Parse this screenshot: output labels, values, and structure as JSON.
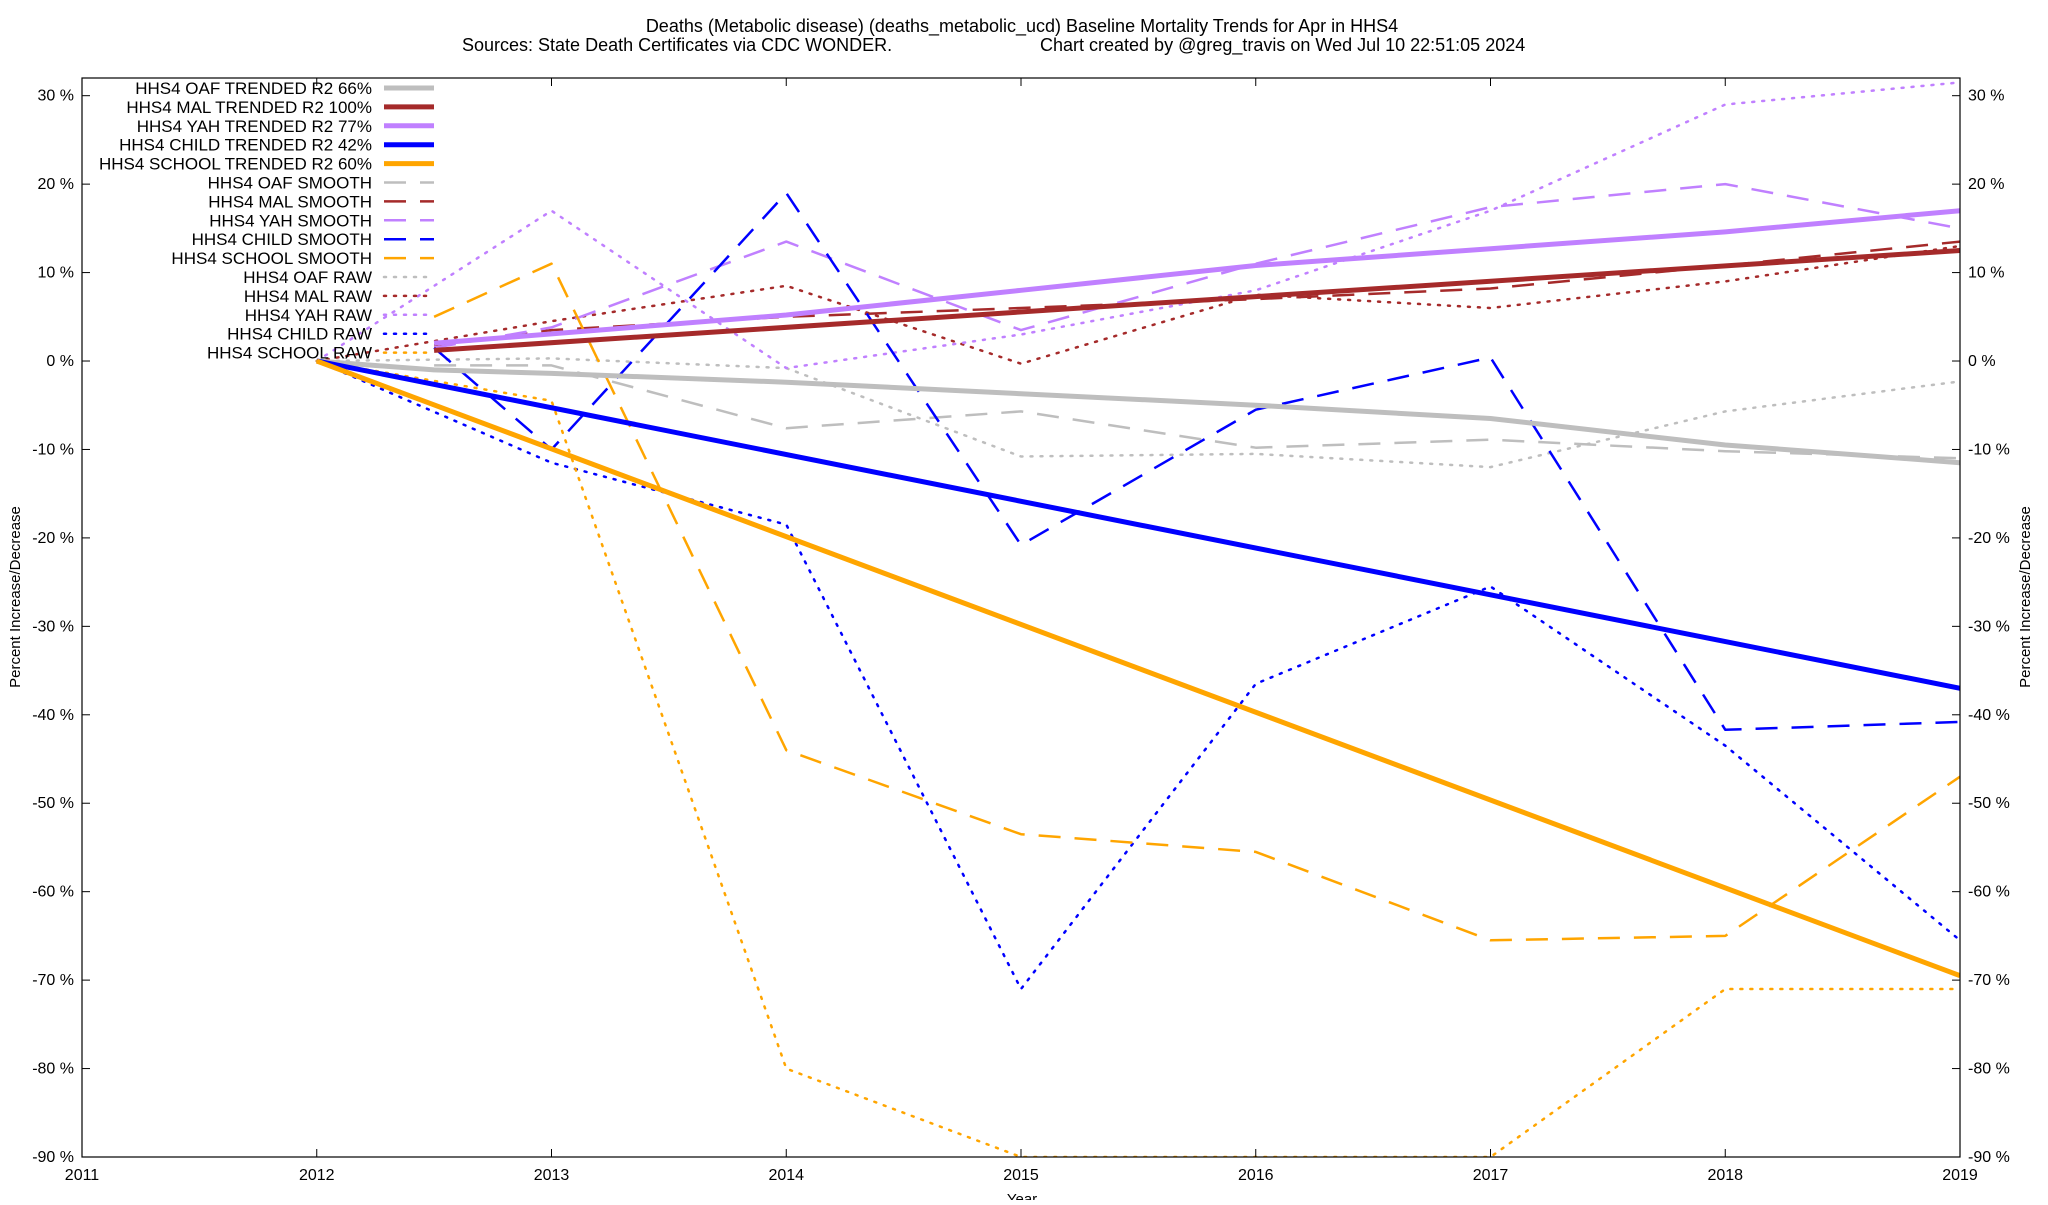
{
  "chart_data": {
    "type": "line",
    "title_line1": "Deaths (Metabolic disease) (deaths_metabolic_ucd)  Baseline Mortality Trends for Apr in HHS4",
    "title_line2_left": "Sources: State Death Certificates via CDC WONDER.",
    "title_line2_right": "Chart created by @greg_travis on Wed Jul 10 22:51:05 2024",
    "xlabel": "Year",
    "ylabel": "Percent Increase/Decrease",
    "ylabel_right": "Percent Increase/Decrease",
    "xlim": [
      2011,
      2019
    ],
    "ylim": [
      -90,
      32
    ],
    "x_ticks": [
      2011,
      2012,
      2013,
      2014,
      2015,
      2016,
      2017,
      2018,
      2019
    ],
    "x_tick_labels": [
      "2011",
      "2012",
      "2013",
      "2014",
      "2015",
      "2016",
      "2017",
      "2018",
      "2019"
    ],
    "y_ticks": [
      30,
      20,
      10,
      0,
      -10,
      -20,
      -30,
      -40,
      -50,
      -60,
      -70,
      -80,
      -90
    ],
    "y_tick_labels": [
      "30 %",
      "20 %",
      "10 %",
      "0 %",
      "-10 %",
      "-20 %",
      "-30 %",
      "-40 %",
      "-50 %",
      "-60 %",
      "-70 %",
      "-80 %",
      "-90 %"
    ],
    "grid": false,
    "legend_position": "top-left",
    "series": [
      {
        "name": "HHS4 OAF TRENDED R2  66%",
        "style": "solid",
        "color": "#bebebe",
        "x": [
          2012,
          2012.5,
          2013,
          2014,
          2015,
          2016,
          2017,
          2018,
          2019
        ],
        "y": [
          0,
          -1,
          -1.4,
          -2.4,
          -3.7,
          -5.0,
          -6.5,
          -9.5,
          -11.5
        ]
      },
      {
        "name": "HHS4 MAL TRENDED R2 100%",
        "style": "solid",
        "color": "#a52a2a",
        "x": [
          2012.5,
          2019
        ],
        "y": [
          1.2,
          12.5
        ]
      },
      {
        "name": "HHS4 YAH TRENDED R2  77%",
        "style": "solid",
        "color": "#c080ff",
        "x": [
          2012.5,
          2014,
          2015,
          2016,
          2017,
          2018,
          2019
        ],
        "y": [
          2.0,
          5.2,
          8.0,
          10.8,
          12.7,
          14.6,
          17.0
        ]
      },
      {
        "name": "HHS4 CHILD TRENDED R2  42%",
        "style": "solid",
        "color": "#0000ff",
        "x": [
          2012,
          2019
        ],
        "y": [
          0,
          -37.0
        ]
      },
      {
        "name": "HHS4 SCHOOL TRENDED R2  60%",
        "style": "solid",
        "color": "#ffa500",
        "x": [
          2012,
          2019
        ],
        "y": [
          0,
          -69.5
        ]
      },
      {
        "name": "HHS4 OAF SMOOTH",
        "style": "dashed",
        "color": "#bebebe",
        "x": [
          2012.5,
          2013,
          2014,
          2015,
          2016,
          2017,
          2018,
          2019
        ],
        "y": [
          -0.5,
          -0.5,
          -7.6,
          -5.7,
          -9.8,
          -8.9,
          -10.2,
          -11.0
        ]
      },
      {
        "name": "HHS4 MAL SMOOTH",
        "style": "dashed",
        "color": "#a52a2a",
        "x": [
          2012.5,
          2013,
          2014,
          2015,
          2016,
          2017,
          2018,
          2019
        ],
        "y": [
          1.8,
          3.5,
          5.0,
          6.0,
          7.0,
          8.2,
          10.8,
          13.5
        ]
      },
      {
        "name": "HHS4 YAH SMOOTH",
        "style": "dashed",
        "color": "#c080ff",
        "x": [
          2012.5,
          2013,
          2014,
          2015,
          2016,
          2017,
          2018,
          2019
        ],
        "y": [
          1.5,
          3.8,
          13.5,
          3.5,
          11.0,
          17.4,
          20.0,
          15.0
        ]
      },
      {
        "name": "HHS4 CHILD SMOOTH",
        "style": "dashed",
        "color": "#0000ff",
        "x": [
          2012.5,
          2013,
          2014,
          2015,
          2016,
          2017,
          2018,
          2019
        ],
        "y": [
          1.5,
          -10.0,
          19.0,
          -20.8,
          -5.5,
          0.4,
          -41.7,
          -40.8
        ]
      },
      {
        "name": "HHS4 SCHOOL SMOOTH",
        "style": "dashed",
        "color": "#ffa500",
        "x": [
          2012.5,
          2013,
          2014,
          2015,
          2016,
          2017,
          2018,
          2019
        ],
        "y": [
          5.0,
          11.0,
          -44.0,
          -53.5,
          -55.5,
          -65.5,
          -65.0,
          -47.0
        ]
      },
      {
        "name": "HHS4 OAF RAW",
        "style": "dotted",
        "color": "#bebebe",
        "x": [
          2012,
          2013,
          2014,
          2015,
          2016,
          2017,
          2018,
          2019
        ],
        "y": [
          0,
          0.3,
          -0.8,
          -10.8,
          -10.5,
          -12.0,
          -5.7,
          -2.3
        ]
      },
      {
        "name": "HHS4 MAL RAW",
        "style": "dotted",
        "color": "#a52a2a",
        "x": [
          2012,
          2013,
          2014,
          2015,
          2016,
          2017,
          2018,
          2019
        ],
        "y": [
          0,
          4.5,
          8.5,
          -0.3,
          7.5,
          6.0,
          9.0,
          13.0
        ]
      },
      {
        "name": "HHS4 YAH RAW",
        "style": "dotted",
        "color": "#c080ff",
        "x": [
          2012,
          2013,
          2014,
          2015,
          2016,
          2017,
          2018,
          2019
        ],
        "y": [
          0,
          17.0,
          -0.8,
          3.0,
          8.0,
          17.0,
          29.0,
          31.5
        ]
      },
      {
        "name": "HHS4 CHILD RAW",
        "style": "dotted",
        "color": "#0000ff",
        "x": [
          2012,
          2013,
          2014,
          2015,
          2016,
          2017,
          2018,
          2019
        ],
        "y": [
          0,
          -11.5,
          -18.5,
          -71.0,
          -36.5,
          -25.5,
          -43.5,
          -65.5
        ]
      },
      {
        "name": "HHS4 SCHOOL RAW",
        "style": "dotted",
        "color": "#ffa500",
        "x": [
          2012,
          2013,
          2014,
          2015,
          2016,
          2017,
          2018,
          2019
        ],
        "y": [
          0,
          -4.5,
          -80.0,
          -90.0,
          -90.0,
          -90.0,
          -71.0,
          -71.0
        ]
      }
    ]
  }
}
